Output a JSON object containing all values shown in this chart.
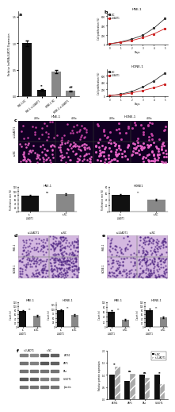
{
  "panel_a": {
    "values": [
      1.0,
      0.12,
      0.47,
      0.1
    ],
    "errors": [
      0.05,
      0.01,
      0.03,
      0.01
    ],
    "colors": [
      "#111111",
      "#111111",
      "#888888",
      "#888888"
    ],
    "ylabel": "Relative lncRNA-LUADT1 Expression",
    "tick_labels": [
      "HNE-1-NC",
      "HNE-1-si-LUADT1",
      "HONE-1-NC",
      "HONE-1-si-LUADT1"
    ],
    "yticks": [
      0.0,
      0.5,
      1.0,
      1.5
    ],
    "ylim": [
      0,
      1.6
    ],
    "sig_marks": [
      "",
      "**",
      "",
      "##"
    ],
    "sig_colors": [
      "black",
      "black",
      "black",
      "black"
    ],
    "label": "a"
  },
  "panel_b_hne": {
    "title": "HNE-1",
    "xlabel": "Days",
    "ylabel": "Cell proliferation (%)",
    "days": [
      0,
      1,
      2,
      3,
      4,
      5
    ],
    "nc_values": [
      20,
      60,
      120,
      200,
      350,
      550
    ],
    "si_values": [
      20,
      50,
      90,
      150,
      230,
      340
    ],
    "ylim": [
      0,
      700
    ],
    "yticks": [
      0,
      200,
      400,
      600
    ],
    "nc_color": "#333333",
    "si_color": "#cc2222",
    "label": "b"
  },
  "panel_b_hone": {
    "title": "HONE-1",
    "xlabel": "Days",
    "ylabel": "Cell proliferation (%)",
    "days": [
      0,
      1,
      2,
      3,
      4,
      5
    ],
    "nc_values": [
      20,
      60,
      140,
      270,
      450,
      680
    ],
    "si_values": [
      20,
      45,
      100,
      170,
      250,
      350
    ],
    "ylim": [
      0,
      800
    ],
    "yticks": [
      0,
      200,
      400,
      600
    ],
    "nc_color": "#333333",
    "si_color": "#cc2222"
  },
  "panel_c_bars_hne": {
    "title": "HNE-1",
    "si_val": 78,
    "nc_val": 85,
    "si_err": 3,
    "nc_err": 3,
    "ylabel": "Proliferation rate (%)",
    "ylim": [
      0,
      120
    ],
    "yticks": [
      0,
      40,
      80,
      120
    ],
    "sig": "ns"
  },
  "panel_c_bars_hone": {
    "title": "HONE1",
    "si_val": 55,
    "nc_val": 38,
    "si_err": 3,
    "nc_err": 3,
    "ylabel": "Proliferation rate (%)",
    "ylim": [
      0,
      80
    ],
    "yticks": [
      0,
      20,
      40,
      60,
      80
    ],
    "sig": "**"
  },
  "panel_d_bars_hne": {
    "title": "HNE-1",
    "si_val": 75,
    "nc_val": 52,
    "si_err": 4,
    "nc_err": 4,
    "ylabel": "Count (n)",
    "ylim": [
      0,
      120
    ],
    "sig": "**"
  },
  "panel_d_bars_hone": {
    "title": "HONE-1",
    "si_val": 95,
    "nc_val": 68,
    "si_err": 5,
    "nc_err": 5,
    "ylabel": "Count (n)",
    "ylim": [
      0,
      140
    ],
    "sig": "**"
  },
  "panel_e_bars_hne": {
    "title": "HNE-1",
    "si_val": 62,
    "nc_val": 28,
    "si_err": 4,
    "nc_err": 3,
    "ylabel": "Count (n)",
    "ylim": [
      0,
      100
    ],
    "sig": "**"
  },
  "panel_e_bars_hone": {
    "title": "HONE-1",
    "si_val": 82,
    "nc_val": 45,
    "si_err": 5,
    "nc_err": 4,
    "ylabel": "Count (n)",
    "ylim": [
      0,
      120
    ],
    "sig": "**"
  },
  "panel_f_bar": {
    "proteins": [
      "LATS1",
      "YAP1",
      "TAz",
      "VLUDT1"
    ],
    "nc_values": [
      1.0,
      0.75,
      1.0,
      1.0
    ],
    "si_values": [
      1.35,
      1.05,
      0.88,
      0.62
    ],
    "nc_color": "#111111",
    "si_color": "#aaaaaa",
    "ylabel": "Relative protein expression",
    "ylim": [
      0,
      2.0
    ],
    "yticks": [
      0,
      0.5,
      1.0,
      1.5,
      2.0
    ],
    "sig_marks": [
      "**",
      "ns",
      "ns",
      "**"
    ]
  },
  "colors": {
    "si_luadt1": "#111111",
    "si_nc": "#888888",
    "micro_bg": "#110022",
    "micro_dot_sparse": "#cc44aa",
    "micro_dot_dense": "#ee66cc",
    "transwell_bg": "#d4b8e0",
    "transwell_dot": "#4a2080",
    "wb_bg": "#f0f0f0",
    "wb_band": "#444444"
  },
  "bg_color": "#ffffff"
}
